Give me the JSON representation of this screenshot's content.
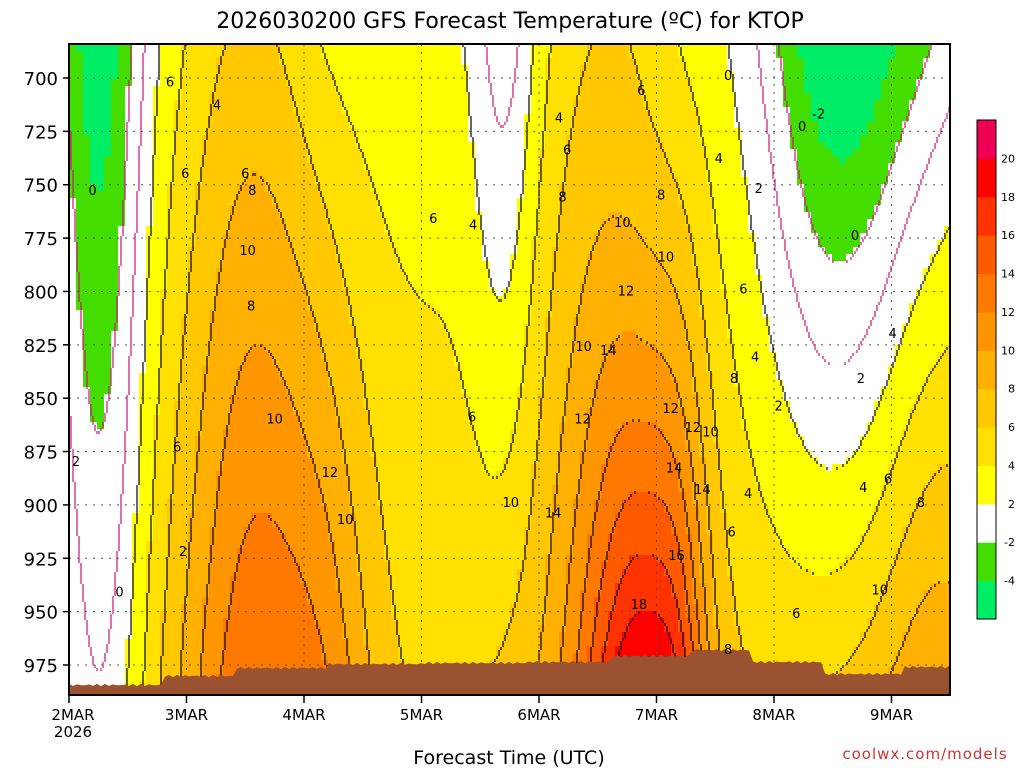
{
  "chart_data": {
    "type": "heatmap",
    "title": "2026030200 GFS Forecast Temperature (ºC) for KTOP",
    "xlabel": "Forecast Time (UTC)",
    "credit": "coolwx.com/models",
    "x_ticks": [
      "2MAR",
      "3MAR",
      "4MAR",
      "5MAR",
      "6MAR",
      "7MAR",
      "8MAR",
      "9MAR"
    ],
    "x_year": "2026",
    "y_ticks": [
      700,
      725,
      750,
      775,
      800,
      825,
      850,
      875,
      900,
      925,
      950,
      975
    ],
    "ylim": [
      690,
      985
    ],
    "colorbar": {
      "levels": [
        -4,
        -2,
        2,
        4,
        6,
        8,
        10,
        12,
        14,
        16,
        18,
        20
      ],
      "colors": [
        "#00ee66",
        "#44dd00",
        "#ffffff",
        "#ffff00",
        "#ffe000",
        "#ffc800",
        "#ffb000",
        "#ff9600",
        "#ff7800",
        "#ff5a00",
        "#ff3200",
        "#ff0000",
        "#ee0055"
      ]
    },
    "contour_labels": [
      {
        "v": "6",
        "d": 0.86,
        "p": 702
      },
      {
        "v": "4",
        "d": 1.26,
        "p": 713
      },
      {
        "v": "6",
        "d": 0.99,
        "p": 745
      },
      {
        "v": "6",
        "d": 1.5,
        "p": 745
      },
      {
        "v": "8",
        "d": 1.56,
        "p": 753
      },
      {
        "v": "0",
        "d": 0.2,
        "p": 753
      },
      {
        "v": "6",
        "d": 3.1,
        "p": 766
      },
      {
        "v": "4",
        "d": 3.44,
        "p": 769
      },
      {
        "v": "10",
        "d": 1.52,
        "p": 781
      },
      {
        "v": "8",
        "d": 1.55,
        "p": 807
      },
      {
        "v": "10",
        "d": 1.75,
        "p": 860
      },
      {
        "v": "6",
        "d": 0.92,
        "p": 873
      },
      {
        "v": "12",
        "d": 2.22,
        "p": 885
      },
      {
        "v": "10",
        "d": 2.35,
        "p": 907
      },
      {
        "v": "2",
        "d": 0.97,
        "p": 922
      },
      {
        "v": "0",
        "d": 0.43,
        "p": 941
      },
      {
        "v": "2",
        "d": 0.06,
        "p": 880
      },
      {
        "v": "6",
        "d": 3.43,
        "p": 859
      },
      {
        "v": "4",
        "d": 4.17,
        "p": 719
      },
      {
        "v": "6",
        "d": 4.24,
        "p": 734
      },
      {
        "v": "8",
        "d": 4.2,
        "p": 756
      },
      {
        "v": "10",
        "d": 4.71,
        "p": 768
      },
      {
        "v": "12",
        "d": 4.74,
        "p": 800
      },
      {
        "v": "10",
        "d": 4.38,
        "p": 826
      },
      {
        "v": "14",
        "d": 4.59,
        "p": 828
      },
      {
        "v": "12",
        "d": 4.37,
        "p": 860
      },
      {
        "v": "10",
        "d": 3.76,
        "p": 899
      },
      {
        "v": "14",
        "d": 4.12,
        "p": 904
      },
      {
        "v": "12",
        "d": 5.12,
        "p": 855
      },
      {
        "v": "12",
        "d": 5.31,
        "p": 864
      },
      {
        "v": "10",
        "d": 5.46,
        "p": 866
      },
      {
        "v": "14",
        "d": 5.15,
        "p": 883
      },
      {
        "v": "14",
        "d": 5.39,
        "p": 893
      },
      {
        "v": "16",
        "d": 5.17,
        "p": 924
      },
      {
        "v": "18",
        "d": 4.85,
        "p": 947
      },
      {
        "v": "6",
        "d": 4.87,
        "p": 706
      },
      {
        "v": "8",
        "d": 5.04,
        "p": 755
      },
      {
        "v": "10",
        "d": 5.08,
        "p": 784
      },
      {
        "v": "4",
        "d": 5.53,
        "p": 738
      },
      {
        "v": "0",
        "d": 5.61,
        "p": 699
      },
      {
        "v": "-2",
        "d": 6.38,
        "p": 717
      },
      {
        "v": "0",
        "d": 6.24,
        "p": 723
      },
      {
        "v": "2",
        "d": 5.87,
        "p": 752
      },
      {
        "v": "0",
        "d": 6.69,
        "p": 774
      },
      {
        "v": "6",
        "d": 5.74,
        "p": 799
      },
      {
        "v": "4",
        "d": 5.84,
        "p": 831
      },
      {
        "v": "8",
        "d": 5.66,
        "p": 841
      },
      {
        "v": "2",
        "d": 6.04,
        "p": 854
      },
      {
        "v": "4",
        "d": 5.78,
        "p": 895
      },
      {
        "v": "6",
        "d": 5.64,
        "p": 913
      },
      {
        "v": "6",
        "d": 6.19,
        "p": 951
      },
      {
        "v": "8",
        "d": 5.61,
        "p": 968
      },
      {
        "v": "4",
        "d": 7.01,
        "p": 820
      },
      {
        "v": "2",
        "d": 6.74,
        "p": 841
      },
      {
        "v": "4",
        "d": 6.76,
        "p": 892
      },
      {
        "v": "6",
        "d": 6.97,
        "p": 888
      },
      {
        "v": "8",
        "d": 7.25,
        "p": 899
      },
      {
        "v": "10",
        "d": 6.9,
        "p": 940
      }
    ]
  }
}
